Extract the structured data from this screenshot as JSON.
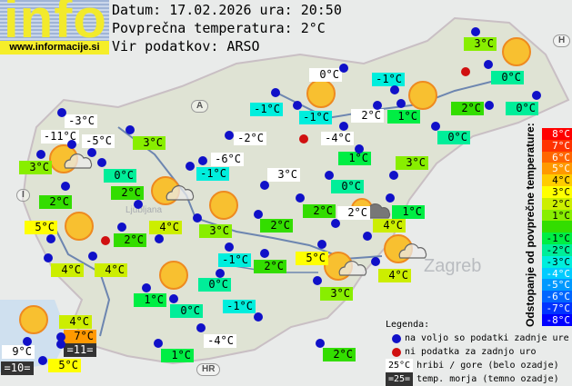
{
  "logo": {
    "word": "info",
    "url": "www.informacije.si"
  },
  "header": {
    "date_line": "Datum: 17.02.2026 ura: 20:50",
    "avg_line": "Povprečna temperatura: 2°C",
    "source_line": "Vir podatkov: ARSO"
  },
  "average_temp": 2,
  "map_labels": {
    "austria": "A",
    "italy": "I",
    "croatia": "HR",
    "hungary": "H",
    "zagreb": "Zagreb",
    "ljubljana": "Ljubljana"
  },
  "stations": [
    {
      "text": "3°C",
      "type": "valley"
    },
    {
      "text": "0°C",
      "type": "mountain"
    },
    {
      "text": "-1°C",
      "type": "valley"
    },
    {
      "text": "0°C",
      "type": "valley"
    },
    {
      "text": "-1°C",
      "type": "valley"
    },
    {
      "text": "-1°C",
      "type": "valley"
    },
    {
      "text": "2°C",
      "type": "mountain"
    },
    {
      "text": "1°C",
      "type": "valley"
    },
    {
      "text": "2°C",
      "type": "valley"
    },
    {
      "text": "0°C",
      "type": "valley"
    },
    {
      "text": "-3°C",
      "type": "mountain"
    },
    {
      "text": "-11°C",
      "type": "mountain"
    },
    {
      "text": "-5°C",
      "type": "mountain"
    },
    {
      "text": "3°C",
      "type": "valley"
    },
    {
      "text": "-2°C",
      "type": "mountain"
    },
    {
      "text": "-4°C",
      "type": "mountain"
    },
    {
      "text": "0°C",
      "type": "valley"
    },
    {
      "text": "3°C",
      "type": "valley"
    },
    {
      "text": "-6°C",
      "type": "mountain"
    },
    {
      "text": "1°C",
      "type": "valley"
    },
    {
      "text": "3°C",
      "type": "valley"
    },
    {
      "text": "0°C",
      "type": "valley"
    },
    {
      "text": "-1°C",
      "type": "valley"
    },
    {
      "text": "3°C",
      "type": "mountain"
    },
    {
      "text": "0°C",
      "type": "valley"
    },
    {
      "text": "2°C",
      "type": "valley"
    },
    {
      "text": "2°C",
      "type": "valley"
    },
    {
      "text": "2°C",
      "type": "valley"
    },
    {
      "text": "2°C",
      "type": "mountain"
    },
    {
      "text": "1°C",
      "type": "valley"
    },
    {
      "text": "5°C",
      "type": "valley"
    },
    {
      "text": "4°C",
      "type": "valley"
    },
    {
      "text": "3°C",
      "type": "valley"
    },
    {
      "text": "2°C",
      "type": "valley"
    },
    {
      "text": "4°C",
      "type": "valley"
    },
    {
      "text": "2°C",
      "type": "valley"
    },
    {
      "text": "5°C",
      "type": "valley"
    },
    {
      "text": "-1°C",
      "type": "valley"
    },
    {
      "text": "2°C",
      "type": "valley"
    },
    {
      "text": "4°C",
      "type": "valley"
    },
    {
      "text": "4°C",
      "type": "valley"
    },
    {
      "text": "4°C",
      "type": "valley"
    },
    {
      "text": "0°C",
      "type": "valley"
    },
    {
      "text": "3°C",
      "type": "valley"
    },
    {
      "text": "1°C",
      "type": "valley"
    },
    {
      "text": "0°C",
      "type": "valley"
    },
    {
      "text": "-1°C",
      "type": "valley"
    },
    {
      "text": "4°C",
      "type": "valley"
    },
    {
      "text": "7°C",
      "type": "valley"
    },
    {
      "text": "=11=",
      "type": "sea"
    },
    {
      "text": "9°C",
      "type": "mountain"
    },
    {
      "text": "-4°C",
      "type": "mountain"
    },
    {
      "text": "1°C",
      "type": "valley"
    },
    {
      "text": "2°C",
      "type": "valley"
    },
    {
      "text": "5°C",
      "type": "valley"
    },
    {
      "text": "=10=",
      "type": "sea"
    }
  ],
  "weather_icons": [
    "sunny",
    "sunny",
    "sunny",
    "partly-cloudy",
    "partly-cloudy",
    "sunny",
    "sunny",
    "sunny",
    "sunny",
    "partly-cloudy-dark",
    "partly-cloudy",
    "partly-cloudy"
  ],
  "scale": {
    "title": "Odstopanje od povprečne temperature:",
    "steps": [
      {
        "label": "8°C",
        "color": "#ff0000"
      },
      {
        "label": "7°C",
        "color": "#ff3300"
      },
      {
        "label": "6°C",
        "color": "#ff6600"
      },
      {
        "label": "5°C",
        "color": "#ff9900"
      },
      {
        "label": "4°C",
        "color": "#ffcc00"
      },
      {
        "label": "3°C",
        "color": "#ffff00"
      },
      {
        "label": "2°C",
        "color": "#ccee00"
      },
      {
        "label": "1°C",
        "color": "#88ee00"
      },
      {
        "label": "",
        "color": "#33dd00"
      },
      {
        "label": "-1°C",
        "color": "#00ee44"
      },
      {
        "label": "-2°C",
        "color": "#00ee99"
      },
      {
        "label": "-3°C",
        "color": "#00eedd"
      },
      {
        "label": "-4°C",
        "color": "#00ccff"
      },
      {
        "label": "-5°C",
        "color": "#0099ff"
      },
      {
        "label": "-6°C",
        "color": "#0066ff"
      },
      {
        "label": "-7°C",
        "color": "#0033ff"
      },
      {
        "label": "-8°C",
        "color": "#0000ff"
      }
    ]
  },
  "legend": {
    "title": "Legenda:",
    "available": "na voljo so podatki zadnje ure",
    "missing": "ni podatka za zadnjo uro",
    "mountain_sample": "25°C",
    "mountain_text": "hribi / gore (belo ozadje)",
    "sea_sample": "=25=",
    "sea_text": "temp. morja (temno ozadje)"
  },
  "colors": {
    "dot_available": "#1010c8",
    "dot_missing": "#d01010",
    "mountain_bg": "#ffffff",
    "sea_bg": "#333333",
    "sun": "#f8c030"
  }
}
